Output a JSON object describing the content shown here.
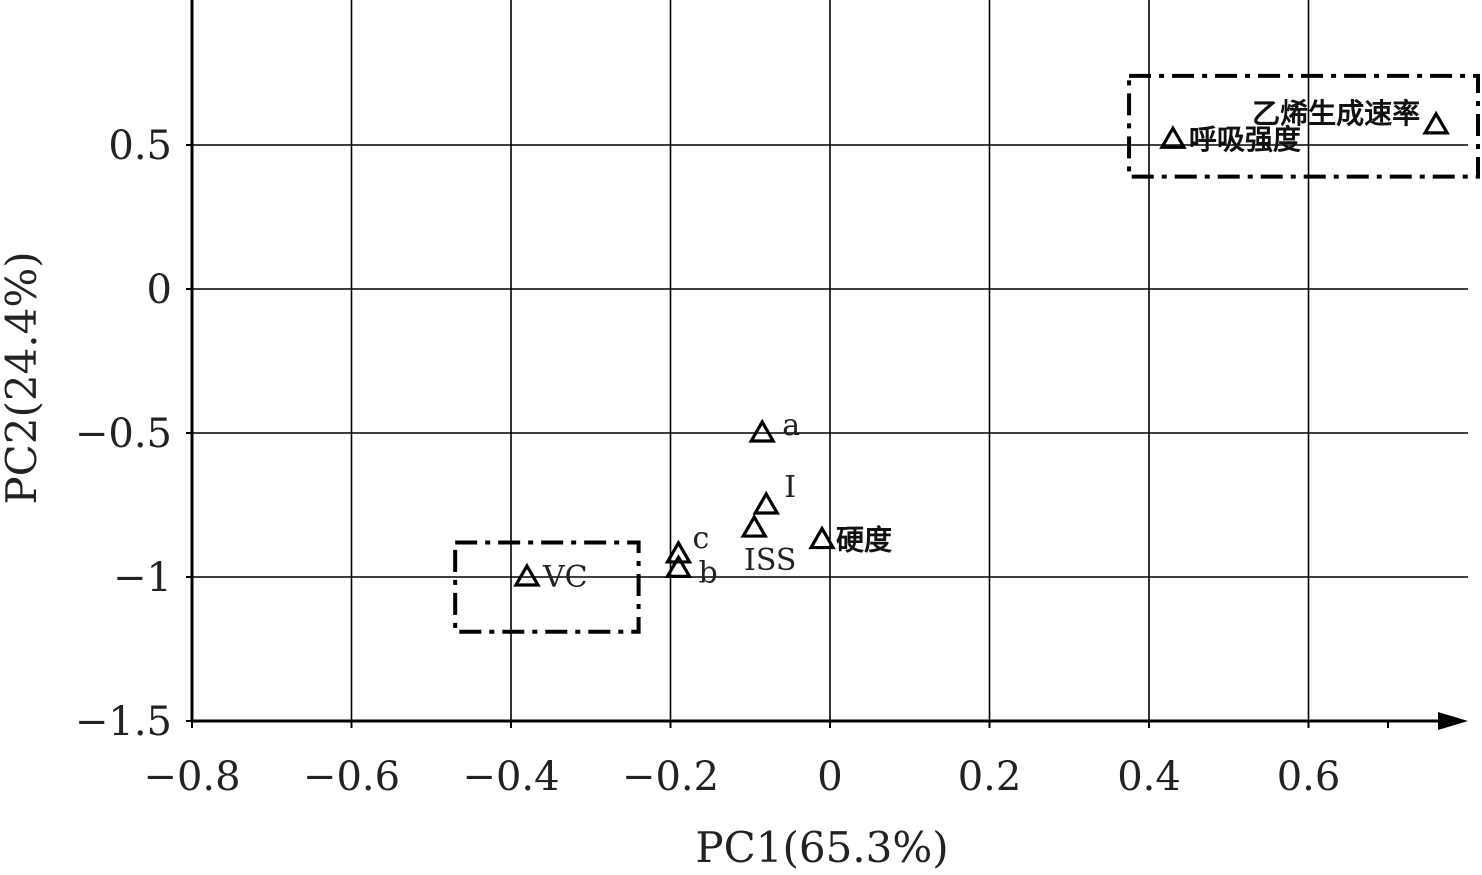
{
  "chart_data": {
    "type": "scatter",
    "xlabel": "PC1(65.3%)",
    "ylabel": "PC2(24.4%)",
    "xlim": [
      -0.8,
      0.8
    ],
    "ylim": [
      -1.5,
      1.0
    ],
    "x_ticks": [
      "−0.8",
      "−0.6",
      "−0.4",
      "−0.2",
      "0",
      "0.2",
      "0.4",
      "0.6"
    ],
    "y_ticks": [
      "0.5",
      "0",
      "−0.5",
      "−1",
      "−1.5"
    ],
    "grid": true,
    "marker": "open-triangle",
    "points": [
      {
        "label": "a",
        "x": -0.085,
        "y": -0.5
      },
      {
        "label": "I",
        "x": -0.08,
        "y": -0.75
      },
      {
        "label": "ISS",
        "x": -0.095,
        "y": -0.83
      },
      {
        "label": "c",
        "x": -0.19,
        "y": -0.92
      },
      {
        "label": "b",
        "x": -0.19,
        "y": -0.97
      },
      {
        "label": "VC",
        "x": -0.38,
        "y": -1.0
      },
      {
        "label": "硬度",
        "x": -0.01,
        "y": -0.87
      },
      {
        "label": "呼吸强度",
        "x": 0.43,
        "y": 0.52
      },
      {
        "label": "乙烯生成速率",
        "x": 0.76,
        "y": 0.57
      }
    ],
    "annotations": [
      {
        "type": "dash-dot-box",
        "x": [
          -0.47,
          -0.24
        ],
        "y": [
          -1.19,
          -0.88
        ]
      },
      {
        "type": "dash-dot-box",
        "x": [
          0.375,
          0.82
        ],
        "y": [
          0.39,
          0.74
        ]
      }
    ]
  }
}
